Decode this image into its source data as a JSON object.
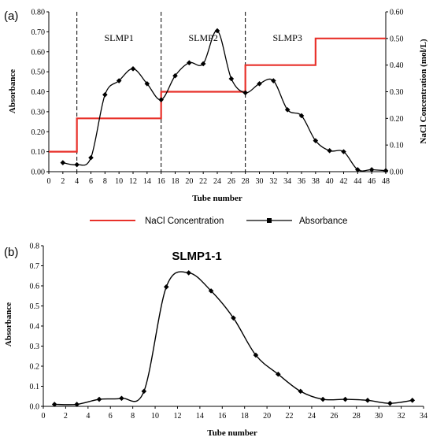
{
  "chart_data": [
    {
      "type": "line",
      "panel_label": "(a)",
      "xlabel": "Tube number",
      "ylabel": "Absorbance",
      "y2label": "NaCl Concentration (mol/L)",
      "xlim": [
        0,
        48
      ],
      "ylim": [
        0,
        0.8
      ],
      "y2lim": [
        0,
        0.6
      ],
      "xticks": [
        "0",
        "2",
        "4",
        "6",
        "8",
        "10",
        "12",
        "14",
        "16",
        "18",
        "20",
        "22",
        "24",
        "26",
        "28",
        "30",
        "32",
        "34",
        "36",
        "38",
        "40",
        "42",
        "44",
        "46",
        "48"
      ],
      "yticks": [
        "0.00",
        "0.10",
        "0.20",
        "0.30",
        "0.40",
        "0.50",
        "0.60",
        "0.70",
        "0.80"
      ],
      "y2ticks": [
        "0.00",
        "0.10",
        "0.20",
        "0.30",
        "0.40",
        "0.50",
        "0.60"
      ],
      "regions": [
        {
          "label": "SLMP1",
          "x_center": 10
        },
        {
          "label": "SLMP2",
          "x_center": 22
        },
        {
          "label": "SLMP3",
          "x_center": 34
        }
      ],
      "dividers_x": [
        4,
        16,
        28
      ],
      "legend": {
        "placement": "bottom",
        "items": [
          "NaCl Concentration",
          "Absorbance"
        ]
      },
      "series": [
        {
          "name": "Absorbance",
          "axis": "left",
          "color": "#000000",
          "marker": "diamond",
          "x": [
            2,
            4,
            6,
            8,
            10,
            12,
            14,
            16,
            18,
            20,
            22,
            24,
            26,
            28,
            30,
            32,
            34,
            36,
            38,
            40,
            42,
            44,
            46,
            48
          ],
          "y": [
            0.045,
            0.035,
            0.07,
            0.385,
            0.455,
            0.515,
            0.44,
            0.36,
            0.48,
            0.545,
            0.54,
            0.705,
            0.465,
            0.395,
            0.44,
            0.455,
            0.31,
            0.28,
            0.155,
            0.105,
            0.1,
            0.01,
            0.01,
            0.005
          ]
        },
        {
          "name": "NaCl Concentration",
          "axis": "right",
          "color": "#e8312a",
          "step": true,
          "x": [
            0,
            4,
            4,
            16,
            16,
            28,
            28,
            38,
            38,
            48
          ],
          "y": [
            0.075,
            0.075,
            0.2,
            0.2,
            0.3,
            0.3,
            0.4,
            0.4,
            0.5,
            0.5
          ]
        }
      ]
    },
    {
      "type": "line",
      "panel_label": "(b)",
      "title": "SLMP1-1",
      "xlabel": "Tube number",
      "ylabel": "Absorbance",
      "xlim": [
        0,
        34
      ],
      "ylim": [
        0,
        0.8
      ],
      "xticks": [
        "0",
        "2",
        "4",
        "6",
        "8",
        "10",
        "12",
        "14",
        "16",
        "18",
        "20",
        "22",
        "24",
        "26",
        "28",
        "30",
        "32",
        "34"
      ],
      "yticks": [
        "0.0",
        "0.1",
        "0.2",
        "0.3",
        "0.4",
        "0.5",
        "0.6",
        "0.7",
        "0.8"
      ],
      "series": [
        {
          "name": "Absorbance",
          "color": "#000000",
          "marker": "diamond",
          "x": [
            1,
            3,
            5,
            7,
            9,
            11,
            13,
            15,
            17,
            19,
            21,
            23,
            25,
            27,
            29,
            31,
            33
          ],
          "y": [
            0.01,
            0.01,
            0.035,
            0.04,
            0.075,
            0.595,
            0.665,
            0.575,
            0.44,
            0.255,
            0.16,
            0.075,
            0.035,
            0.035,
            0.03,
            0.015,
            0.03
          ]
        }
      ]
    }
  ]
}
